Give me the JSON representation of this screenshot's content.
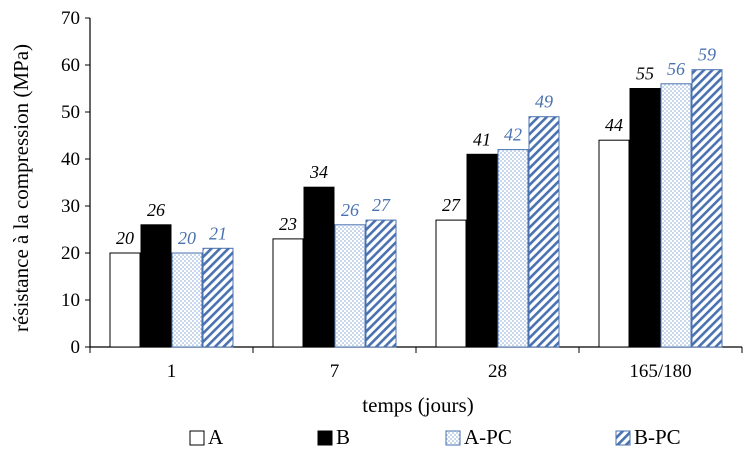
{
  "chart_data": {
    "type": "bar",
    "categories": [
      "1",
      "7",
      "28",
      "165/180"
    ],
    "series": [
      {
        "name": "A",
        "values": [
          20,
          23,
          27,
          44
        ],
        "style": "white",
        "label_color": "#000000"
      },
      {
        "name": "B",
        "values": [
          26,
          34,
          41,
          55
        ],
        "style": "black",
        "label_color": "#000000"
      },
      {
        "name": "A-PC",
        "values": [
          20,
          26,
          42,
          56
        ],
        "style": "dotted",
        "label_color": "#4a72b0"
      },
      {
        "name": "B-PC",
        "values": [
          21,
          27,
          49,
          59
        ],
        "style": "hatched",
        "label_color": "#4a72b0"
      }
    ],
    "xlabel": "temps (jours)",
    "ylabel": "résistance à la compression (MPa)",
    "ylim": [
      0,
      70
    ],
    "yticks": [
      0,
      10,
      20,
      30,
      40,
      50,
      60,
      70
    ],
    "grid": false,
    "legend_position": "bottom",
    "colors": {
      "pc_border": "#4a72b0",
      "pc_dots": "#8aaad6"
    }
  }
}
